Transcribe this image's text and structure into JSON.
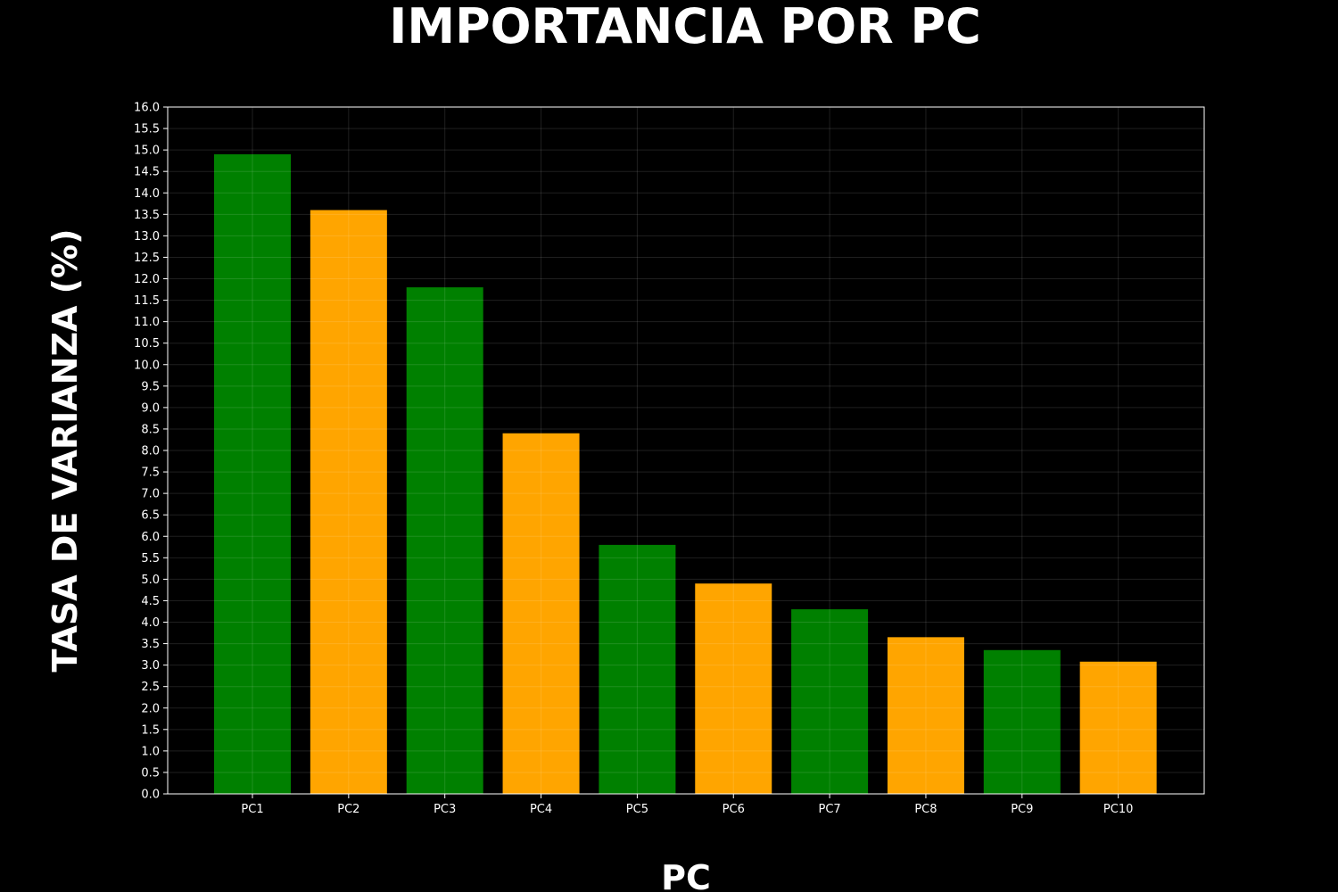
{
  "chart_data": {
    "type": "bar",
    "title": "IMPORTANCIA POR PC",
    "xlabel": "PC",
    "ylabel": "TASA DE VARIANZA (%)",
    "categories": [
      "PC1",
      "PC2",
      "PC3",
      "PC4",
      "PC5",
      "PC6",
      "PC7",
      "PC8",
      "PC9",
      "PC10"
    ],
    "values": [
      14.9,
      13.6,
      11.8,
      8.4,
      5.8,
      4.9,
      4.3,
      3.65,
      3.35,
      3.08
    ],
    "bar_colors": [
      "#008000",
      "#ffa500",
      "#008000",
      "#ffa500",
      "#008000",
      "#ffa500",
      "#008000",
      "#ffa500",
      "#008000",
      "#ffa500"
    ],
    "ylim": [
      0,
      16
    ],
    "yticks": [
      "0.0",
      "0.5",
      "1.0",
      "1.5",
      "2.0",
      "2.5",
      "3.0",
      "3.5",
      "4.0",
      "4.5",
      "5.0",
      "5.5",
      "6.0",
      "6.5",
      "7.0",
      "7.5",
      "8.0",
      "8.5",
      "9.0",
      "9.5",
      "10.0",
      "10.5",
      "11.0",
      "11.5",
      "12.0",
      "12.5",
      "13.0",
      "13.5",
      "14.0",
      "14.5",
      "15.0",
      "15.5",
      "16.0"
    ],
    "grid": true,
    "background": "#000000"
  }
}
